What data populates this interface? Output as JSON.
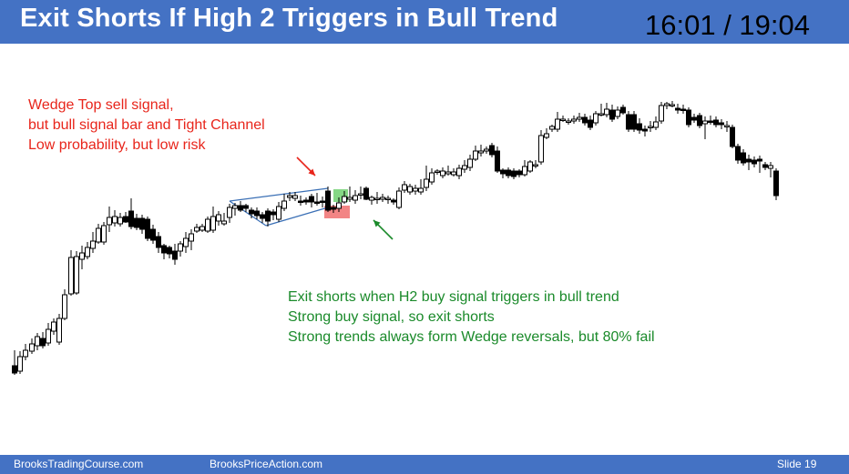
{
  "slide": {
    "title": "Exit Shorts If High 2 Triggers in Bull Trend",
    "timestamp": "16:01 / 19:04",
    "footer_left": "BrooksTradingCourse.com",
    "footer_center": "BrooksPriceAction.com",
    "footer_right": "Slide  19",
    "colors": {
      "title_bar": "#4472c4",
      "red_text": "#e8251b",
      "green_text": "#1a8a2a",
      "bull_body": "#ffffff",
      "bear_body": "#000000",
      "wedge_line": "#3a6fb5",
      "signal_green": "#70d070",
      "signal_red": "#f07070"
    }
  },
  "annotations": {
    "red_note": [
      "Wedge Top sell signal,",
      "but bull signal bar and Tight Channel",
      "Low probability, but low risk"
    ],
    "green_note": [
      "Exit shorts when H2 buy signal triggers in bull trend",
      "Strong buy signal, so exit shorts",
      "Strong trends always form Wedge reversals, but 80% fail"
    ]
  },
  "chart_data": {
    "type": "candlestick",
    "note": "Unlabeled price chart; values are relative price levels (no axis printed).",
    "bars": [
      [
        16,
        402,
        410,
        385,
        412
      ],
      [
        22,
        408,
        392,
        386,
        411
      ],
      [
        28,
        392,
        385,
        378,
        396
      ],
      [
        35,
        386,
        378,
        372,
        389
      ],
      [
        41,
        380,
        370,
        366,
        385
      ],
      [
        47,
        372,
        380,
        365,
        383
      ],
      [
        53,
        377,
        362,
        355,
        380
      ],
      [
        59,
        364,
        354,
        350,
        368
      ],
      [
        65,
        376,
        350,
        345,
        379
      ],
      [
        71,
        350,
        324,
        318,
        352
      ],
      [
        78,
        323,
        283,
        275,
        325
      ],
      [
        84,
        322,
        282,
        276,
        324
      ],
      [
        90,
        285,
        278,
        270,
        296
      ],
      [
        96,
        282,
        272,
        266,
        285
      ],
      [
        102,
        273,
        265,
        255,
        278
      ],
      [
        108,
        266,
        251,
        246,
        268
      ],
      [
        114,
        266,
        248,
        244,
        269
      ],
      [
        120,
        247,
        239,
        227,
        255
      ],
      [
        126,
        245,
        238,
        231,
        249
      ],
      [
        132,
        246,
        239,
        234,
        249
      ],
      [
        138,
        238,
        244,
        233,
        245
      ],
      [
        144,
        232,
        249,
        218,
        252
      ],
      [
        150,
        240,
        250,
        235,
        253
      ],
      [
        156,
        240,
        252,
        236,
        257
      ],
      [
        162,
        241,
        262,
        238,
        265
      ],
      [
        168,
        252,
        264,
        247,
        268
      ],
      [
        174,
        260,
        272,
        255,
        278
      ],
      [
        180,
        270,
        278,
        268,
        285
      ],
      [
        186,
        272,
        279,
        270,
        284
      ],
      [
        192,
        276,
        285,
        268,
        291
      ],
      [
        198,
        276,
        268,
        265,
        282
      ],
      [
        204,
        271,
        262,
        255,
        278
      ],
      [
        210,
        265,
        257,
        252,
        275
      ],
      [
        216,
        254,
        250,
        246,
        256
      ],
      [
        222,
        253,
        249,
        246,
        255
      ],
      [
        228,
        254,
        241,
        238,
        256
      ],
      [
        234,
        253,
        238,
        227,
        256
      ],
      [
        240,
        243,
        236,
        232,
        248
      ],
      [
        246,
        246,
        243,
        234,
        248
      ],
      [
        252,
        239,
        228,
        224,
        245
      ],
      [
        258,
        229,
        226,
        223,
        237
      ],
      [
        264,
        226,
        231,
        221,
        233
      ],
      [
        270,
        226,
        229,
        224,
        233
      ],
      [
        276,
        231,
        235,
        228,
        240
      ],
      [
        282,
        232,
        237,
        228,
        241
      ],
      [
        288,
        236,
        240,
        233,
        245
      ],
      [
        294,
        232,
        243,
        229,
        249
      ],
      [
        300,
        233,
        236,
        230,
        242
      ],
      [
        306,
        241,
        227,
        222,
        244
      ],
      [
        312,
        229,
        221,
        213,
        232
      ],
      [
        318,
        217,
        215,
        211,
        221
      ],
      [
        324,
        218,
        215,
        211,
        221
      ],
      [
        330,
        221,
        222,
        215,
        226
      ],
      [
        336,
        220,
        222,
        217,
        225
      ],
      [
        342,
        216,
        222,
        213,
        228
      ],
      [
        348,
        222,
        223,
        212,
        226
      ],
      [
        354,
        221,
        222,
        216,
        228
      ],
      [
        360,
        210,
        231,
        205,
        233
      ],
      [
        366,
        228,
        230,
        225,
        234
      ],
      [
        372,
        229,
        223,
        217,
        233
      ],
      [
        378,
        222,
        216,
        210,
        224
      ],
      [
        384,
        219,
        217,
        205,
        222
      ],
      [
        390,
        220,
        215,
        209,
        224
      ],
      [
        396,
        213,
        213,
        205,
        219
      ],
      [
        402,
        207,
        219,
        205,
        220
      ],
      [
        408,
        220,
        217,
        215,
        225
      ],
      [
        414,
        219,
        218,
        211,
        224
      ],
      [
        420,
        219,
        217,
        213,
        222
      ],
      [
        426,
        219,
        218,
        215,
        224
      ],
      [
        432,
        220,
        222,
        218,
        225
      ],
      [
        438,
        228,
        210,
        206,
        230
      ],
      [
        444,
        209,
        203,
        199,
        212
      ],
      [
        450,
        211,
        205,
        202,
        214
      ],
      [
        456,
        210,
        207,
        203,
        214
      ],
      [
        462,
        211,
        207,
        197,
        214
      ],
      [
        468,
        206,
        197,
        182,
        210
      ],
      [
        474,
        200,
        190,
        185,
        203
      ],
      [
        480,
        189,
        188,
        186,
        192
      ],
      [
        486,
        193,
        188,
        184,
        196
      ],
      [
        492,
        191,
        189,
        182,
        193
      ],
      [
        498,
        192,
        189,
        185,
        194
      ],
      [
        504,
        193,
        185,
        181,
        197
      ],
      [
        510,
        186,
        182,
        176,
        190
      ],
      [
        516,
        184,
        175,
        170,
        188
      ],
      [
        522,
        175,
        166,
        160,
        177
      ],
      [
        528,
        168,
        166,
        159,
        172
      ],
      [
        534,
        166,
        164,
        161,
        169
      ],
      [
        540,
        160,
        170,
        157,
        173
      ],
      [
        546,
        166,
        188,
        161,
        190
      ],
      [
        552,
        187,
        191,
        185,
        196
      ],
      [
        558,
        187,
        193,
        184,
        196
      ],
      [
        564,
        188,
        194,
        185,
        197
      ],
      [
        570,
        188,
        192,
        186,
        195
      ],
      [
        576,
        192,
        183,
        176,
        194
      ],
      [
        582,
        188,
        178,
        176,
        190
      ],
      [
        588,
        182,
        181,
        176,
        185
      ],
      [
        594,
        178,
        149,
        143,
        181
      ],
      [
        600,
        151,
        147,
        141,
        153
      ],
      [
        606,
        142,
        139,
        137,
        145
      ],
      [
        612,
        142,
        131,
        123,
        145
      ],
      [
        618,
        132,
        131,
        127,
        134
      ],
      [
        624,
        133,
        133,
        130,
        137
      ],
      [
        630,
        133,
        131,
        127,
        136
      ],
      [
        636,
        131,
        129,
        124,
        134
      ],
      [
        642,
        129,
        135,
        125,
        138
      ],
      [
        648,
        132,
        140,
        127,
        143
      ],
      [
        654,
        135,
        125,
        122,
        138
      ],
      [
        660,
        126,
        125,
        114,
        128
      ],
      [
        666,
        126,
        120,
        113,
        129
      ],
      [
        672,
        121,
        131,
        115,
        134
      ],
      [
        678,
        128,
        121,
        117,
        131
      ],
      [
        684,
        118,
        124,
        115,
        126
      ],
      [
        690,
        126,
        142,
        122,
        145
      ],
      [
        696,
        126,
        142,
        122,
        145
      ],
      [
        702,
        136,
        143,
        130,
        147
      ],
      [
        708,
        142,
        144,
        138,
        150
      ],
      [
        714,
        140,
        139,
        133,
        145
      ],
      [
        720,
        140,
        134,
        128,
        143
      ],
      [
        726,
        133,
        116,
        112,
        136
      ],
      [
        732,
        116,
        114,
        112,
        120
      ],
      [
        738,
        115,
        115,
        111,
        118
      ],
      [
        744,
        119,
        121,
        114,
        125
      ],
      [
        750,
        120,
        121,
        115,
        125
      ],
      [
        756,
        121,
        137,
        118,
        140
      ],
      [
        762,
        129,
        132,
        125,
        135
      ],
      [
        768,
        127,
        138,
        124,
        141
      ],
      [
        774,
        136,
        133,
        128,
        153
      ],
      [
        780,
        133,
        134,
        127,
        137
      ],
      [
        786,
        132,
        137,
        128,
        140
      ],
      [
        792,
        135,
        137,
        131,
        142
      ],
      [
        798,
        138,
        138,
        133,
        145
      ],
      [
        804,
        140,
        161,
        137,
        163
      ],
      [
        810,
        161,
        176,
        158,
        180
      ],
      [
        816,
        168,
        179,
        164,
        182
      ],
      [
        822,
        175,
        178,
        170,
        187
      ],
      [
        828,
        176,
        180,
        172,
        184
      ],
      [
        834,
        175,
        177,
        171,
        190
      ],
      [
        840,
        181,
        184,
        178,
        187
      ],
      [
        846,
        185,
        182,
        178,
        195
      ],
      [
        852,
        188,
        215,
        185,
        220
      ]
    ]
  }
}
